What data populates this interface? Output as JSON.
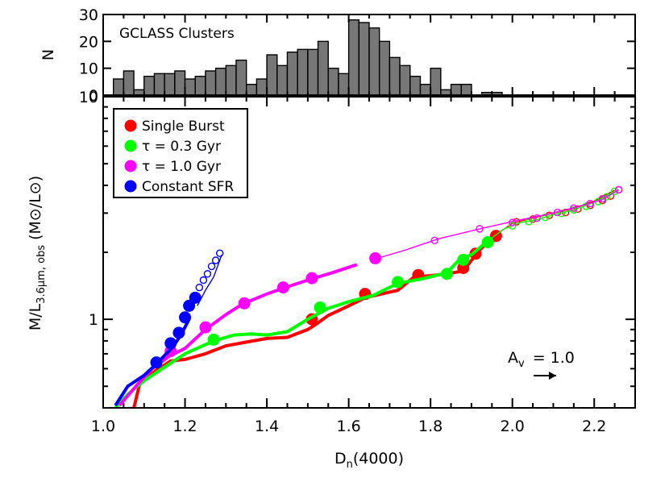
{
  "chart_data": [
    {
      "type": "bar",
      "title": "GCLASS Clusters",
      "xlabel": "",
      "ylabel": "N",
      "xlim": [
        1.0,
        2.3
      ],
      "ylim": [
        0,
        30
      ],
      "yticks": [
        "0",
        "10",
        "20",
        "30"
      ],
      "bin_width": 0.025,
      "bin_start": 1.025,
      "values": [
        6,
        9,
        2,
        7,
        8,
        8,
        9,
        6,
        7,
        9,
        10,
        11,
        13,
        4,
        6,
        15,
        11,
        16,
        17,
        17,
        20,
        10,
        8,
        28,
        27,
        25,
        20,
        14,
        11,
        7,
        4,
        10,
        2,
        4,
        4,
        0,
        1,
        1,
        0,
        0,
        0,
        0,
        0,
        0,
        0,
        0,
        0,
        0,
        0,
        0
      ]
    },
    {
      "type": "line",
      "xlabel": "D",
      "xlabel_sub": "n",
      "xlabel_suffix": "(4000)",
      "ylabel": "M/L",
      "ylabel_sub": "3.6μm, obs",
      "ylabel_suffix": "(M⊙/L⊙)",
      "xlim": [
        1.0,
        2.3
      ],
      "ylim": [
        0.4,
        10
      ],
      "yscale": "log",
      "xticks": [
        "1.0",
        "1.2",
        "1.4",
        "1.6",
        "1.8",
        "2.0",
        "2.2"
      ],
      "yticks": [
        "1",
        "10"
      ],
      "legend_position": "top-left",
      "series": [
        {
          "name": "Single Burst",
          "color": "#ff0000",
          "line": [
            [
              1.075,
              0.4
            ],
            [
              1.09,
              0.52
            ],
            [
              1.13,
              0.59
            ],
            [
              1.165,
              0.65
            ],
            [
              1.2,
              0.66
            ],
            [
              1.25,
              0.7
            ],
            [
              1.3,
              0.76
            ],
            [
              1.35,
              0.79
            ],
            [
              1.4,
              0.82
            ],
            [
              1.45,
              0.83
            ],
            [
              1.5,
              0.9
            ],
            [
              1.52,
              0.95
            ],
            [
              1.55,
              1.04
            ],
            [
              1.6,
              1.15
            ],
            [
              1.64,
              1.25
            ],
            [
              1.68,
              1.3
            ],
            [
              1.72,
              1.35
            ],
            [
              1.76,
              1.55
            ],
            [
              1.8,
              1.57
            ],
            [
              1.84,
              1.6
            ],
            [
              1.88,
              1.65
            ],
            [
              1.92,
              2.05
            ],
            [
              1.96,
              2.4
            ],
            [
              2.0,
              2.7
            ],
            [
              2.05,
              2.85
            ],
            [
              2.1,
              3.0
            ],
            [
              2.15,
              3.15
            ],
            [
              2.2,
              3.4
            ],
            [
              2.25,
              3.8
            ]
          ],
          "filled_points": [
            [
              1.51,
              1.0
            ],
            [
              1.64,
              1.3
            ],
            [
              1.77,
              1.58
            ],
            [
              1.88,
              1.7
            ],
            [
              1.91,
              1.97
            ],
            [
              1.96,
              2.37
            ]
          ],
          "open_points": [
            [
              2.01,
              2.74
            ],
            [
              2.05,
              2.82
            ],
            [
              2.09,
              2.93
            ],
            [
              2.13,
              3.02
            ],
            [
              2.16,
              3.13
            ],
            [
              2.19,
              3.25
            ],
            [
              2.22,
              3.42
            ],
            [
              2.24,
              3.58
            ],
            [
              2.26,
              3.82
            ]
          ]
        },
        {
          "name": "τ = 0.3 Gyr",
          "color": "#00ff00",
          "line": [
            [
              1.03,
              0.4
            ],
            [
              1.06,
              0.46
            ],
            [
              1.1,
              0.53
            ],
            [
              1.15,
              0.61
            ],
            [
              1.2,
              0.7
            ],
            [
              1.25,
              0.77
            ],
            [
              1.28,
              0.81
            ],
            [
              1.32,
              0.85
            ],
            [
              1.36,
              0.86
            ],
            [
              1.4,
              0.85
            ],
            [
              1.45,
              0.88
            ],
            [
              1.5,
              1.0
            ],
            [
              1.55,
              1.12
            ],
            [
              1.6,
              1.2
            ],
            [
              1.66,
              1.28
            ],
            [
              1.72,
              1.45
            ],
            [
              1.78,
              1.52
            ],
            [
              1.84,
              1.62
            ],
            [
              1.87,
              1.85
            ],
            [
              1.9,
              1.95
            ],
            [
              1.94,
              2.25
            ],
            [
              1.98,
              2.55
            ],
            [
              2.02,
              2.72
            ],
            [
              2.06,
              2.8
            ],
            [
              2.1,
              2.95
            ],
            [
              2.15,
              3.1
            ],
            [
              2.2,
              3.35
            ],
            [
              2.25,
              3.75
            ]
          ],
          "filled_points": [
            [
              1.27,
              0.81
            ],
            [
              1.53,
              1.13
            ],
            [
              1.72,
              1.47
            ],
            [
              1.84,
              1.6
            ],
            [
              1.88,
              1.85
            ],
            [
              1.94,
              2.22
            ]
          ],
          "open_points": [
            [
              2.0,
              2.63
            ],
            [
              2.04,
              2.75
            ],
            [
              2.08,
              2.87
            ],
            [
              2.12,
              2.99
            ],
            [
              2.15,
              3.1
            ],
            [
              2.18,
              3.22
            ],
            [
              2.21,
              3.38
            ],
            [
              2.23,
              3.55
            ],
            [
              2.25,
              3.76
            ]
          ]
        },
        {
          "name": "τ = 1.0 Gyr",
          "color": "#ff00ff",
          "line": [
            [
              1.04,
              0.41
            ],
            [
              1.08,
              0.5
            ],
            [
              1.12,
              0.6
            ],
            [
              1.16,
              0.68
            ],
            [
              1.2,
              0.74
            ],
            [
              1.25,
              0.9
            ],
            [
              1.3,
              1.05
            ],
            [
              1.34,
              1.17
            ],
            [
              1.4,
              1.3
            ],
            [
              1.44,
              1.38
            ],
            [
              1.5,
              1.5
            ],
            [
              1.56,
              1.62
            ],
            [
              1.62,
              1.76
            ],
            [
              1.67,
              1.88
            ],
            [
              1.74,
              2.05
            ],
            [
              1.82,
              2.3
            ],
            [
              1.92,
              2.55
            ],
            [
              2.0,
              2.75
            ],
            [
              2.08,
              2.95
            ],
            [
              2.16,
              3.2
            ],
            [
              2.22,
              3.45
            ],
            [
              2.26,
              3.82
            ]
          ],
          "filled_points": [
            [
              1.165,
              0.72
            ],
            [
              1.25,
              0.92
            ],
            [
              1.345,
              1.18
            ],
            [
              1.44,
              1.39
            ],
            [
              1.51,
              1.53
            ],
            [
              1.665,
              1.88
            ]
          ],
          "open_points": [
            [
              1.81,
              2.26
            ],
            [
              1.92,
              2.55
            ],
            [
              2.0,
              2.72
            ],
            [
              2.06,
              2.85
            ],
            [
              2.11,
              3.02
            ],
            [
              2.15,
              3.16
            ],
            [
              2.19,
              3.31
            ],
            [
              2.22,
              3.48
            ],
            [
              2.26,
              3.82
            ]
          ]
        },
        {
          "name": "Constant SFR",
          "color": "#0000ff",
          "line": [
            [
              1.03,
              0.41
            ],
            [
              1.06,
              0.5
            ],
            [
              1.1,
              0.56
            ],
            [
              1.13,
              0.63
            ],
            [
              1.17,
              0.75
            ],
            [
              1.19,
              0.85
            ],
            [
              1.21,
              1.0
            ],
            [
              1.23,
              1.15
            ],
            [
              1.25,
              1.35
            ],
            [
              1.27,
              1.55
            ],
            [
              1.29,
              1.95
            ]
          ],
          "filled_points": [
            [
              1.13,
              0.64
            ],
            [
              1.165,
              0.78
            ],
            [
              1.185,
              0.87
            ],
            [
              1.2,
              1.02
            ],
            [
              1.21,
              1.15
            ],
            [
              1.225,
              1.25
            ]
          ],
          "open_points": [
            [
              1.235,
              1.39
            ],
            [
              1.245,
              1.5
            ],
            [
              1.255,
              1.6
            ],
            [
              1.265,
              1.73
            ],
            [
              1.275,
              1.84
            ],
            [
              1.285,
              1.98
            ]
          ]
        }
      ],
      "annotation": {
        "label": "A",
        "label_sub": "v",
        "text": "= 1.0",
        "arrow_dx": 0.05
      }
    }
  ]
}
